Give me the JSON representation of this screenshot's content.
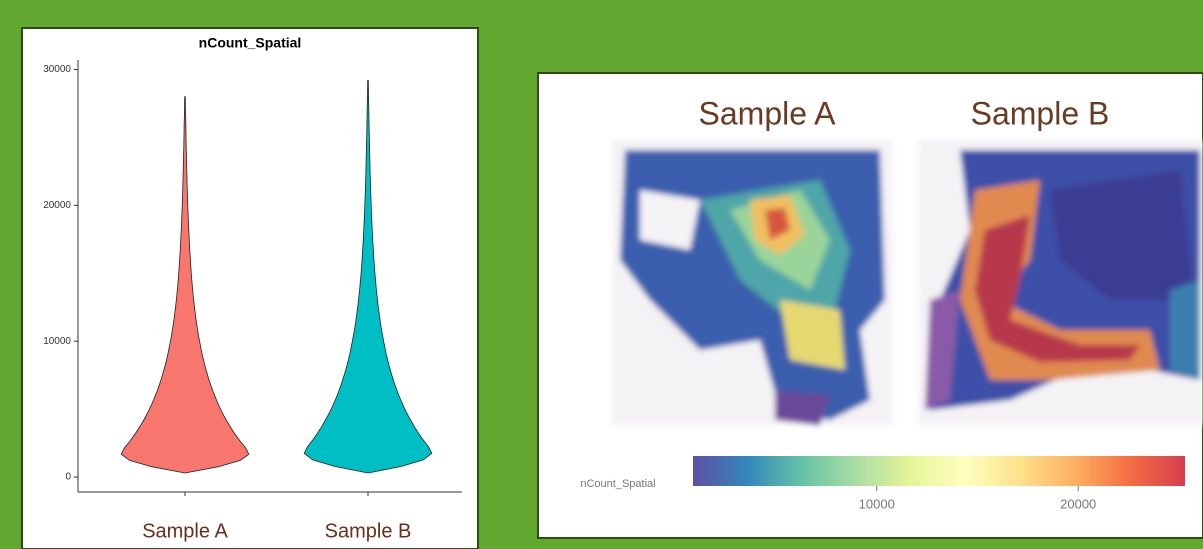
{
  "chart_data": [
    {
      "type": "violin",
      "title": "nCount_Spatial",
      "categories": [
        "Sample A",
        "Sample B"
      ],
      "min": [
        300,
        300
      ],
      "max": [
        28000,
        29200
      ],
      "colors": [
        "#f8766d",
        "#00bfc4"
      ],
      "ylim": [
        -1100,
        30700
      ],
      "yticks": [
        0,
        10000,
        20000,
        30000
      ]
    },
    {
      "type": "spatial",
      "titles": [
        "Sample A",
        "Sample B"
      ],
      "colorbar_label": "nCount_Spatial",
      "clim": [
        880,
        25300
      ],
      "cticks": [
        10000,
        20000
      ],
      "colormap": [
        "#5e4fa2",
        "#3288bd",
        "#66c2a5",
        "#abdda4",
        "#e6f598",
        "#ffffbf",
        "#fee08b",
        "#fdae61",
        "#f46d43",
        "#d53e4f"
      ]
    }
  ]
}
